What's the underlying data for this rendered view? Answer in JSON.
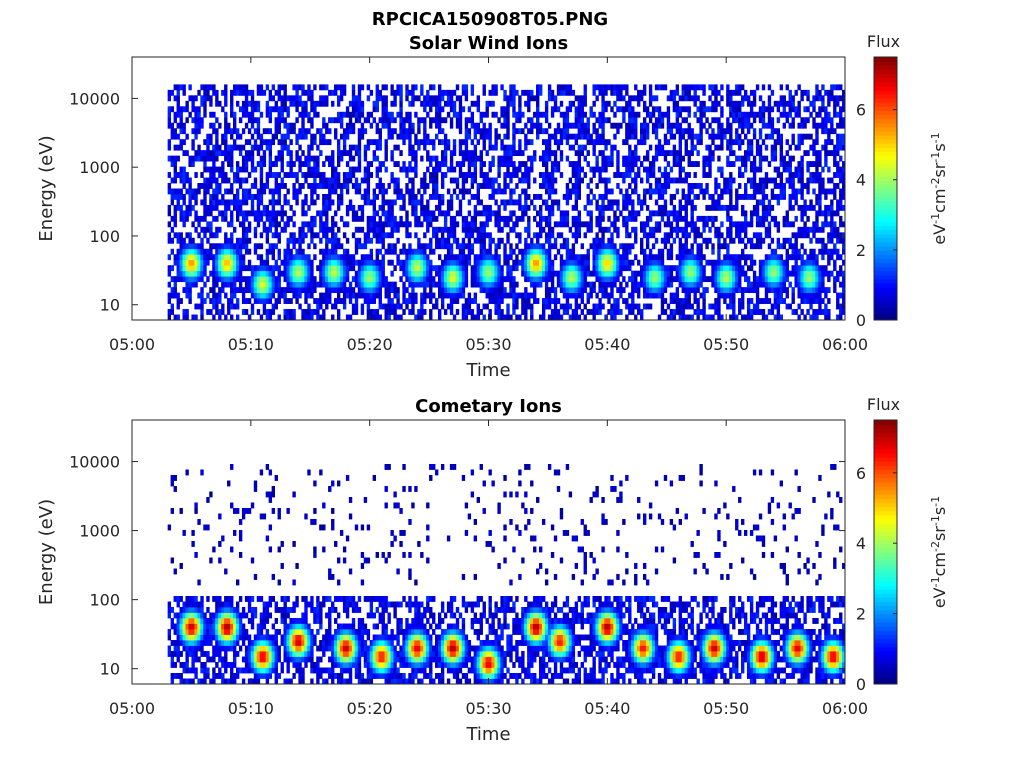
{
  "figure": {
    "title": "RPCICA150908T05.PNG"
  },
  "chart_data": [
    {
      "type": "heatmap",
      "title": "Solar Wind Ions",
      "xlabel": "Time",
      "ylabel": "Energy (eV)",
      "x_ticks": [
        "05:00",
        "05:10",
        "05:20",
        "05:30",
        "05:40",
        "05:50",
        "06:00"
      ],
      "x_range": [
        "05:00",
        "06:00"
      ],
      "y_scale": "log",
      "y_ticks": [
        "10",
        "100",
        "1000",
        "10000"
      ],
      "y_range": [
        6,
        40000
      ],
      "data_start": "05:03",
      "colorbar": {
        "label": "Flux",
        "units": "eV-1cm-2sr-1s-1",
        "ticks": [
          "0",
          "2",
          "4",
          "6"
        ],
        "range": [
          0,
          7.5
        ],
        "colormap": "jet"
      },
      "peaks": [
        {
          "time": "05:05",
          "energy_eV": 40,
          "flux": 5.5
        },
        {
          "time": "05:08",
          "energy_eV": 40,
          "flux": 5.2
        },
        {
          "time": "05:11",
          "energy_eV": 20,
          "flux": 4.5
        },
        {
          "time": "05:14",
          "energy_eV": 30,
          "flux": 4.2
        },
        {
          "time": "05:17",
          "energy_eV": 30,
          "flux": 4.3
        },
        {
          "time": "05:20",
          "energy_eV": 25,
          "flux": 4.0
        },
        {
          "time": "05:24",
          "energy_eV": 35,
          "flux": 4.3
        },
        {
          "time": "05:27",
          "energy_eV": 25,
          "flux": 4.5
        },
        {
          "time": "05:30",
          "energy_eV": 30,
          "flux": 4.0
        },
        {
          "time": "05:34",
          "energy_eV": 40,
          "flux": 5.5
        },
        {
          "time": "05:37",
          "energy_eV": 25,
          "flux": 4.2
        },
        {
          "time": "05:40",
          "energy_eV": 40,
          "flux": 5.0
        },
        {
          "time": "05:44",
          "energy_eV": 25,
          "flux": 4.0
        },
        {
          "time": "05:47",
          "energy_eV": 30,
          "flux": 4.0
        },
        {
          "time": "05:50",
          "energy_eV": 25,
          "flux": 4.2
        },
        {
          "time": "05:54",
          "energy_eV": 30,
          "flux": 4.0
        },
        {
          "time": "05:57",
          "energy_eV": 25,
          "flux": 4.0
        }
      ],
      "background": {
        "energy_max_eV": 15000,
        "flux": 1.0
      }
    },
    {
      "type": "heatmap",
      "title": "Cometary Ions",
      "xlabel": "Time",
      "ylabel": "Energy (eV)",
      "x_ticks": [
        "05:00",
        "05:10",
        "05:20",
        "05:30",
        "05:40",
        "05:50",
        "06:00"
      ],
      "x_range": [
        "05:00",
        "06:00"
      ],
      "y_scale": "log",
      "y_ticks": [
        "10",
        "100",
        "1000",
        "10000"
      ],
      "y_range": [
        6,
        40000
      ],
      "data_start": "05:03",
      "colorbar": {
        "label": "Flux",
        "units": "eV-1cm-2sr-1s-1",
        "ticks": [
          "0",
          "2",
          "4",
          "6"
        ],
        "range": [
          0,
          7.5
        ],
        "colormap": "jet"
      },
      "peaks": [
        {
          "time": "05:05",
          "energy_eV": 40,
          "flux": 7.0
        },
        {
          "time": "05:08",
          "energy_eV": 40,
          "flux": 7.2
        },
        {
          "time": "05:11",
          "energy_eV": 15,
          "flux": 6.8
        },
        {
          "time": "05:14",
          "energy_eV": 25,
          "flux": 7.0
        },
        {
          "time": "05:18",
          "energy_eV": 20,
          "flux": 7.0
        },
        {
          "time": "05:21",
          "energy_eV": 15,
          "flux": 6.5
        },
        {
          "time": "05:24",
          "energy_eV": 20,
          "flux": 6.8
        },
        {
          "time": "05:27",
          "energy_eV": 20,
          "flux": 7.2
        },
        {
          "time": "05:30",
          "energy_eV": 12,
          "flux": 6.8
        },
        {
          "time": "05:34",
          "energy_eV": 40,
          "flux": 7.2
        },
        {
          "time": "05:36",
          "energy_eV": 25,
          "flux": 6.5
        },
        {
          "time": "05:40",
          "energy_eV": 40,
          "flux": 7.2
        },
        {
          "time": "05:43",
          "energy_eV": 20,
          "flux": 6.5
        },
        {
          "time": "05:46",
          "energy_eV": 15,
          "flux": 6.5
        },
        {
          "time": "05:49",
          "energy_eV": 20,
          "flux": 7.0
        },
        {
          "time": "05:53",
          "energy_eV": 15,
          "flux": 7.0
        },
        {
          "time": "05:56",
          "energy_eV": 20,
          "flux": 6.8
        },
        {
          "time": "05:59",
          "energy_eV": 15,
          "flux": 6.8
        }
      ],
      "background": {
        "energy_max_eV": 120,
        "flux": 1.0
      },
      "sparse_high_energy": {
        "energy_range_eV": [
          150,
          10000
        ],
        "flux": 0.5
      }
    }
  ]
}
